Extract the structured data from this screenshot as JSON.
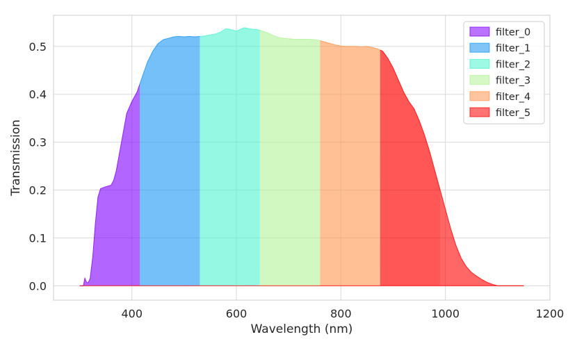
{
  "chart_data": {
    "type": "area",
    "xlabel": "Wavelength (nm)",
    "ylabel": "Transmission",
    "xlim": [
      250,
      1200
    ],
    "ylim": [
      -0.03,
      0.565
    ],
    "xticks": [
      400,
      600,
      800,
      1000,
      1200
    ],
    "yticks": [
      0.0,
      0.1,
      0.2,
      0.3,
      0.4,
      0.5
    ],
    "xtick_labels": [
      "400",
      "600",
      "800",
      "1000",
      "1200"
    ],
    "ytick_labels": [
      "0.0",
      "0.1",
      "0.2",
      "0.3",
      "0.4",
      "0.5"
    ],
    "grid": true,
    "legend_position": "top-right",
    "curve": {
      "x": [
        300,
        307,
        310,
        313,
        316,
        320,
        325,
        330,
        335,
        340,
        350,
        360,
        365,
        370,
        380,
        390,
        400,
        410,
        420,
        430,
        440,
        450,
        460,
        470,
        480,
        490,
        500,
        510,
        520,
        530,
        540,
        550,
        560,
        570,
        575,
        580,
        590,
        600,
        610,
        615,
        620,
        630,
        640,
        650,
        660,
        670,
        680,
        690,
        700,
        710,
        720,
        730,
        740,
        750,
        760,
        770,
        780,
        790,
        800,
        810,
        820,
        830,
        840,
        850,
        860,
        870,
        880,
        890,
        900,
        910,
        920,
        930,
        940,
        950,
        960,
        970,
        980,
        990,
        1000,
        1010,
        1020,
        1030,
        1040,
        1050,
        1060,
        1070,
        1080,
        1090,
        1100,
        1110,
        1150
      ],
      "y": [
        0.0,
        0.0,
        0.016,
        0.008,
        0.006,
        0.015,
        0.06,
        0.13,
        0.185,
        0.203,
        0.207,
        0.21,
        0.22,
        0.24,
        0.3,
        0.36,
        0.385,
        0.405,
        0.437,
        0.468,
        0.49,
        0.506,
        0.514,
        0.517,
        0.52,
        0.521,
        0.52,
        0.521,
        0.52,
        0.521,
        0.522,
        0.524,
        0.526,
        0.53,
        0.534,
        0.537,
        0.535,
        0.532,
        0.537,
        0.539,
        0.538,
        0.536,
        0.535,
        0.532,
        0.528,
        0.523,
        0.519,
        0.517,
        0.516,
        0.515,
        0.515,
        0.515,
        0.515,
        0.514,
        0.512,
        0.509,
        0.506,
        0.503,
        0.501,
        0.5,
        0.5,
        0.5,
        0.499,
        0.5,
        0.498,
        0.495,
        0.49,
        0.475,
        0.455,
        0.43,
        0.405,
        0.385,
        0.37,
        0.345,
        0.315,
        0.28,
        0.24,
        0.2,
        0.16,
        0.12,
        0.085,
        0.058,
        0.04,
        0.028,
        0.02,
        0.013,
        0.007,
        0.003,
        0.0,
        0.0,
        0.0
      ]
    },
    "series": [
      {
        "name": "filter_0",
        "range": [
          300,
          415
        ],
        "color": "#8000ff"
      },
      {
        "name": "filter_1",
        "range": [
          415,
          530
        ],
        "color": "#1996f3"
      },
      {
        "name": "filter_2",
        "range": [
          530,
          645
        ],
        "color": "#4df3ce"
      },
      {
        "name": "filter_3",
        "range": [
          645,
          760
        ],
        "color": "#b2f396"
      },
      {
        "name": "filter_4",
        "range": [
          760,
          875
        ],
        "color": "#ff964f"
      },
      {
        "name": "filter_5",
        "range": [
          875,
          990
        ],
        "color": "#ff0000"
      }
    ]
  }
}
